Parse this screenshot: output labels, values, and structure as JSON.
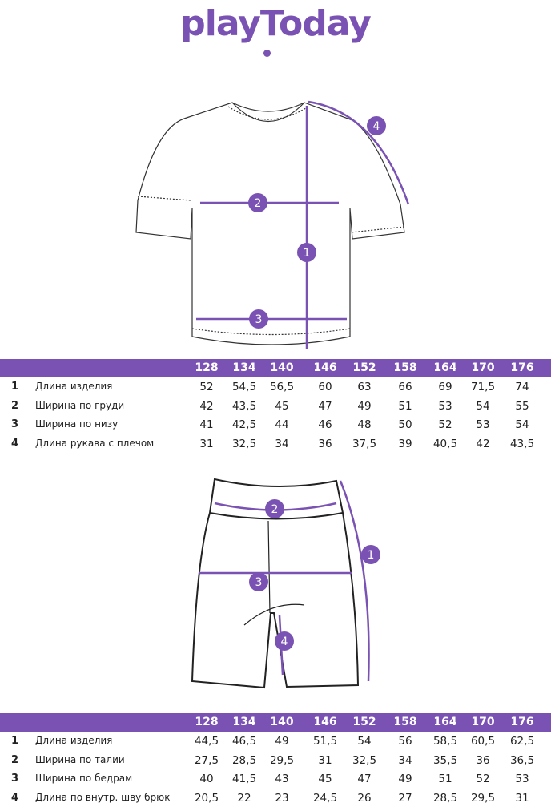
{
  "brand": {
    "logo_text": "playToday",
    "color": "#7a52b3"
  },
  "top_table": {
    "sizes": [
      "128",
      "134",
      "140",
      "146",
      "152",
      "158",
      "164",
      "170",
      "176"
    ],
    "rows": [
      {
        "num": "1",
        "label": "Длина изделия",
        "values": [
          "52",
          "54,5",
          "56,5",
          "60",
          "63",
          "66",
          "69",
          "71,5",
          "74"
        ]
      },
      {
        "num": "2",
        "label": "Ширина по груди",
        "values": [
          "42",
          "43,5",
          "45",
          "47",
          "49",
          "51",
          "53",
          "54",
          "55"
        ]
      },
      {
        "num": "3",
        "label": "Ширина по низу",
        "values": [
          "41",
          "42,5",
          "44",
          "46",
          "48",
          "50",
          "52",
          "53",
          "54"
        ]
      },
      {
        "num": "4",
        "label": "Длина рукава с плечом",
        "values": [
          "31",
          "32,5",
          "34",
          "36",
          "37,5",
          "39",
          "40,5",
          "42",
          "43,5"
        ]
      }
    ]
  },
  "bottom_table": {
    "sizes": [
      "128",
      "134",
      "140",
      "146",
      "152",
      "158",
      "164",
      "170",
      "176"
    ],
    "rows": [
      {
        "num": "1",
        "label": "Длина изделия",
        "values": [
          "44,5",
          "46,5",
          "49",
          "51,5",
          "54",
          "56",
          "58,5",
          "60,5",
          "62,5"
        ]
      },
      {
        "num": "2",
        "label": "Ширина по талии",
        "values": [
          "27,5",
          "28,5",
          "29,5",
          "31",
          "32,5",
          "34",
          "35,5",
          "36",
          "36,5"
        ]
      },
      {
        "num": "3",
        "label": "Ширина по бедрам",
        "values": [
          "40",
          "41,5",
          "43",
          "45",
          "47",
          "49",
          "51",
          "52",
          "53"
        ]
      },
      {
        "num": "4",
        "label": "Длина по внутр. шву брюк",
        "values": [
          "20,5",
          "22",
          "23",
          "24,5",
          "26",
          "27",
          "28,5",
          "29,5",
          "31"
        ]
      }
    ]
  },
  "tshirt_markers": [
    "1",
    "2",
    "3",
    "4"
  ],
  "shorts_markers": [
    "1",
    "2",
    "3",
    "4"
  ]
}
